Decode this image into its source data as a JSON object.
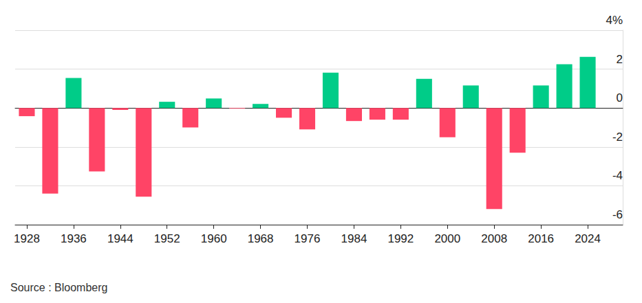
{
  "chart_data": {
    "type": "bar",
    "source": "Source : Bloomberg",
    "categories": [
      "1928",
      null,
      "1936",
      null,
      "1944",
      null,
      "1952",
      null,
      "1960",
      null,
      "1968",
      null,
      "1976",
      null,
      "1984",
      null,
      "1992",
      null,
      "2000",
      null,
      "2008",
      null,
      "2016",
      null,
      "2024",
      null
    ],
    "values": [
      -0.42,
      -4.4,
      1.54,
      -3.26,
      -0.1,
      -4.56,
      0.32,
      -1.0,
      0.49,
      -0.03,
      0.21,
      -0.5,
      -1.1,
      1.82,
      -0.67,
      -0.6,
      -0.6,
      1.5,
      -1.5,
      1.16,
      -5.2,
      -2.3,
      1.16,
      2.25,
      2.63,
      null
    ],
    "colors": [
      "#ff4466",
      "#ff4466",
      "#00cc88",
      "#ff4466",
      "#ff4466",
      "#ff4466",
      "#00cc88",
      "#ff4466",
      "#00cc88",
      "#ff4466",
      "#00cc88",
      "#ff4466",
      "#ff4466",
      "#00cc88",
      "#ff4466",
      "#ff4466",
      "#ff4466",
      "#00cc88",
      "#ff4466",
      "#00cc88",
      "#ff4466",
      "#ff4466",
      "#00cc88",
      "#00cc88",
      "#00cc88",
      null
    ],
    "ylim": [
      -6,
      4
    ],
    "yticks": [
      -6,
      -4,
      -2,
      0,
      2,
      {
        "value": 4,
        "label": "4%"
      }
    ],
    "grid": true
  }
}
